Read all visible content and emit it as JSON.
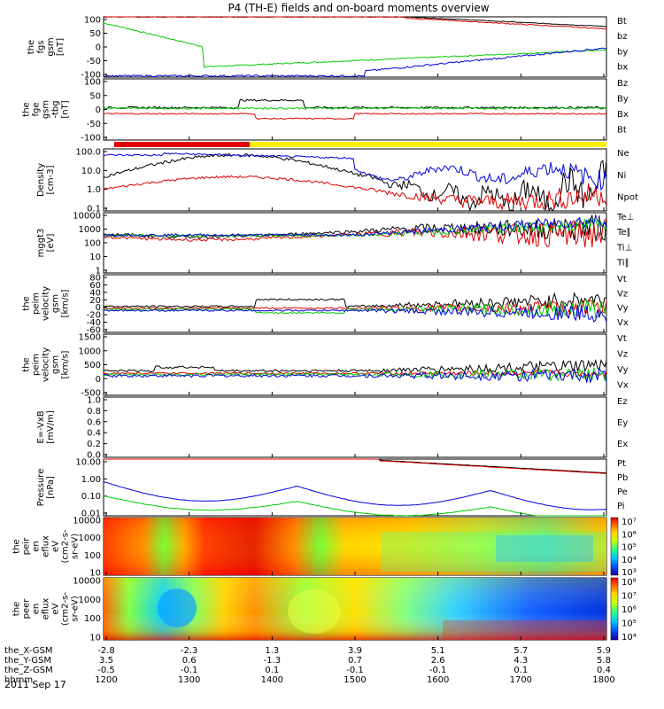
{
  "title": "P4 (TH-E) fields and on-board moments overview",
  "date_label": "2011 Sep 17",
  "colors": {
    "black": "#000000",
    "red": "#e00000",
    "green": "#00cc00",
    "blue": "#0000dd",
    "yellow": "#ffee00"
  },
  "chart_data": [
    {
      "type": "line",
      "id": "fgs",
      "ylabel": [
        "the",
        "fgs",
        "gsm",
        "[nT]"
      ],
      "yticks": [
        "100",
        "50",
        "0",
        "-50",
        "-100"
      ],
      "ylim": [
        -100,
        100
      ],
      "legend": [
        {
          "text": "Bt",
          "color": "black"
        },
        {
          "text": "bz",
          "color": "red"
        },
        {
          "text": "by",
          "color": "green"
        },
        {
          "text": "bx",
          "color": "blue"
        }
      ]
    },
    {
      "type": "line",
      "id": "fge",
      "ylabel": [
        "the",
        "fge",
        "gsm",
        "-tbg",
        "[nT]"
      ],
      "yticks": [
        "100",
        "50",
        "0",
        "-50",
        "-100"
      ],
      "ylim": [
        -120,
        120
      ],
      "legend": [
        {
          "text": "Bz",
          "color": "red"
        },
        {
          "text": "By",
          "color": "green"
        },
        {
          "text": "Bx",
          "color": "blue"
        },
        {
          "text": "Bt",
          "color": "black"
        }
      ]
    },
    {
      "type": "line",
      "id": "density",
      "ylabel": [
        "Density",
        "[cm-3]"
      ],
      "yticks": [
        "100.0",
        "10.0",
        "1.0",
        "0.1"
      ],
      "ylim": [
        0.1,
        300
      ],
      "scale": "log",
      "legend": [
        {
          "text": "Ne",
          "color": "red"
        },
        {
          "text": "Ni",
          "color": "black"
        },
        {
          "text": "Npot",
          "color": "blue"
        }
      ]
    },
    {
      "type": "line",
      "id": "temp",
      "ylabel": [
        "mggt3",
        "[eV]"
      ],
      "yticks": [
        "10000",
        "1000",
        "100",
        "10",
        "1"
      ],
      "ylim": [
        1,
        10000
      ],
      "scale": "log",
      "legend": [
        {
          "text": "Te⊥",
          "color": "red"
        },
        {
          "text": "Te∥",
          "color": "black"
        },
        {
          "text": "Ti⊥",
          "color": "red"
        },
        {
          "text": "Ti∥",
          "color": "green"
        }
      ]
    },
    {
      "type": "line",
      "id": "velocity_e",
      "ylabel": [
        "the",
        "peim",
        "velocity",
        "gsm",
        "[km/s]"
      ],
      "yticks": [
        "80",
        "60",
        "40",
        "20",
        "0",
        "-20",
        "-40",
        "-60"
      ],
      "ylim": [
        -60,
        80
      ],
      "legend": [
        {
          "text": "Vt",
          "color": "black"
        },
        {
          "text": "Vz",
          "color": "red"
        },
        {
          "text": "Vy",
          "color": "green"
        },
        {
          "text": "Vx",
          "color": "blue"
        }
      ]
    },
    {
      "type": "line",
      "id": "velocity_i",
      "ylabel": [
        "the",
        "peim",
        "velocity",
        "gsm",
        "[km/s]"
      ],
      "yticks": [
        "1500",
        "1000",
        "500",
        "0",
        "-500"
      ],
      "ylim": [
        -700,
        1500
      ],
      "legend": [
        {
          "text": "Vt",
          "color": "black"
        },
        {
          "text": "Vz",
          "color": "red"
        },
        {
          "text": "Vy",
          "color": "green"
        },
        {
          "text": "Vx",
          "color": "blue"
        }
      ]
    },
    {
      "type": "line",
      "id": "efield",
      "ylabel": [
        "E=-VxB",
        "[mV/m]"
      ],
      "yticks": [
        "1.0",
        "0.8",
        "0.6",
        "0.4",
        "0.2",
        "0.0"
      ],
      "ylim": [
        0,
        1
      ],
      "legend": [
        {
          "text": "Ez",
          "color": "red"
        },
        {
          "text": "Ey",
          "color": "green"
        },
        {
          "text": "Ex",
          "color": "blue"
        }
      ]
    },
    {
      "type": "line",
      "id": "pressure",
      "ylabel": [
        "Pressure",
        "[nPa]"
      ],
      "yticks": [
        "10.00",
        "1.00",
        "0.10",
        "0.01"
      ],
      "ylim": [
        0.005,
        20
      ],
      "scale": "log",
      "legend": [
        {
          "text": "Pt",
          "color": "black"
        },
        {
          "text": "Pb",
          "color": "red"
        },
        {
          "text": "Pe",
          "color": "green"
        },
        {
          "text": "Pi",
          "color": "blue"
        }
      ]
    },
    {
      "type": "heatmap",
      "id": "ion_spec",
      "ylabel": [
        "the",
        "peir",
        "en",
        "eflux",
        "eV",
        "(cm2-s-",
        "sr-eV)"
      ],
      "yticks": [
        "10000",
        "1000",
        "100",
        "10"
      ],
      "colorbar": [
        "10⁷",
        "10⁶",
        "10⁵",
        "10⁴",
        "10³"
      ]
    },
    {
      "type": "heatmap",
      "id": "elec_spec",
      "ylabel": [
        "the",
        "peer",
        "en",
        "eflux",
        "eV",
        "(cm2-s-",
        "sr-eV)"
      ],
      "yticks": [
        "10000",
        "1000",
        "100",
        "10"
      ],
      "colorbar": [
        "10⁸",
        "10⁷",
        "10⁶",
        "10⁵",
        "10⁴"
      ]
    }
  ],
  "xaxis": {
    "row_labels": [
      "the_X-GSM",
      "the_Y-GSM",
      "the_Z-GSM",
      "hhmm"
    ],
    "columns": [
      [
        "-2.8",
        "3.5",
        "-0.5",
        "1200"
      ],
      [
        "-2.3",
        "0.6",
        "-0.1",
        "1300"
      ],
      [
        "1.3",
        "-1.3",
        "0.1",
        "1400"
      ],
      [
        "3.9",
        "0.7",
        "-0.1",
        "1500"
      ],
      [
        "5.1",
        "2.6",
        "-0.1",
        "1600"
      ],
      [
        "5.7",
        "4.3",
        "0.1",
        "1700"
      ],
      [
        "5.9",
        "5.8",
        "0.4",
        "1800"
      ]
    ]
  }
}
